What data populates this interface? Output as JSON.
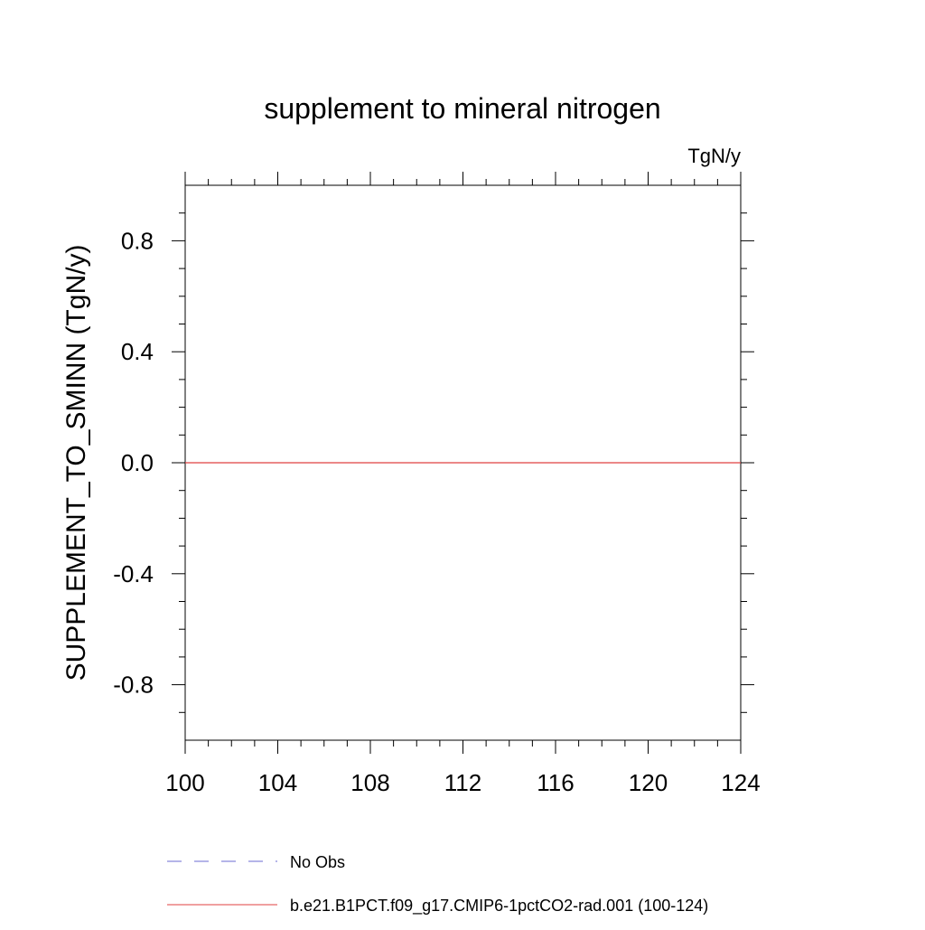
{
  "chart_data": {
    "type": "line",
    "title": "supplement to mineral nitrogen",
    "units_label": "TgN/y",
    "xlabel": "",
    "ylabel": "SUPPLEMENT_TO_SMINN  (TgN/y)",
    "xlim": [
      100,
      124
    ],
    "ylim": [
      -1.0,
      1.0
    ],
    "x_ticks": [
      100,
      104,
      108,
      112,
      116,
      120,
      124
    ],
    "x_tick_labels": [
      "100",
      "104",
      "108",
      "112",
      "116",
      "120",
      "124"
    ],
    "y_ticks": [
      -0.8,
      -0.4,
      0.0,
      0.4,
      0.8
    ],
    "y_tick_labels": [
      "-0.8",
      "-0.4",
      "0.0",
      "0.4",
      "0.8"
    ],
    "grid": false,
    "legend_position": "bottom",
    "series": [
      {
        "name": "No Obs",
        "color": "#6b6bd0",
        "dash": "dashed",
        "x": [],
        "y": []
      },
      {
        "name": "b.e21.B1PCT.f09_g17.CMIP6-1pctCO2-rad.001 (100-124)",
        "color": "#e04040",
        "dash": "solid",
        "x": [
          100,
          101,
          102,
          103,
          104,
          105,
          106,
          107,
          108,
          109,
          110,
          111,
          112,
          113,
          114,
          115,
          116,
          117,
          118,
          119,
          120,
          121,
          122,
          123,
          124
        ],
        "y": [
          0,
          0,
          0,
          0,
          0,
          0,
          0,
          0,
          0,
          0,
          0,
          0,
          0,
          0,
          0,
          0,
          0,
          0,
          0,
          0,
          0,
          0,
          0,
          0,
          0
        ]
      }
    ]
  }
}
